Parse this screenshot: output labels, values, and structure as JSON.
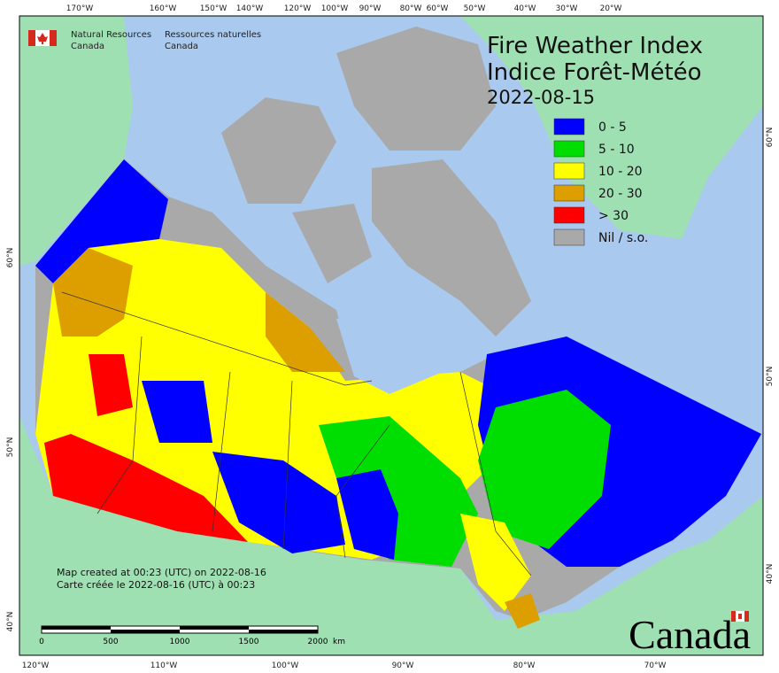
{
  "header": {
    "agency_en": "Natural Resources",
    "agency_en_2": "Canada",
    "agency_fr": "Ressources naturelles",
    "agency_fr_2": "Canada"
  },
  "title": {
    "en": "Fire Weather Index",
    "fr": "Indice Forêt-Météo",
    "date": "2022-08-15"
  },
  "legend": [
    {
      "label": "0 - 5",
      "color": "#0000ff"
    },
    {
      "label": "5 - 10",
      "color": "#00dd00"
    },
    {
      "label": "10 - 20",
      "color": "#ffff00"
    },
    {
      "label": "20 - 30",
      "color": "#dd9e00"
    },
    {
      "label": "> 30",
      "color": "#ff0000"
    },
    {
      "label": "Nil / s.o.",
      "color": "#a9a9a9"
    }
  ],
  "notes": [
    "Map created at 00:23 (UTC) on 2022-08-16",
    "Carte créée le 2022-08-16 (UTC) à 00:23"
  ],
  "scale_bar": {
    "labels": [
      "0",
      "500",
      "1000",
      "1500",
      "2000"
    ],
    "unit": "km"
  },
  "graticule": {
    "top": [
      "170°W",
      "160°W",
      "150°W",
      "140°W",
      "120°W",
      "100°W",
      "90°W",
      "80°W",
      "60°W",
      "50°W",
      "40°W",
      "30°W",
      "20°W"
    ],
    "bottom": [
      "120°W",
      "110°W",
      "100°W",
      "90°W",
      "80°W",
      "70°W"
    ],
    "left": [
      "60°N",
      "50°N",
      "40°N"
    ],
    "right": [
      "60°N",
      "50°N",
      "40°N"
    ]
  },
  "wordmark": "Canada"
}
